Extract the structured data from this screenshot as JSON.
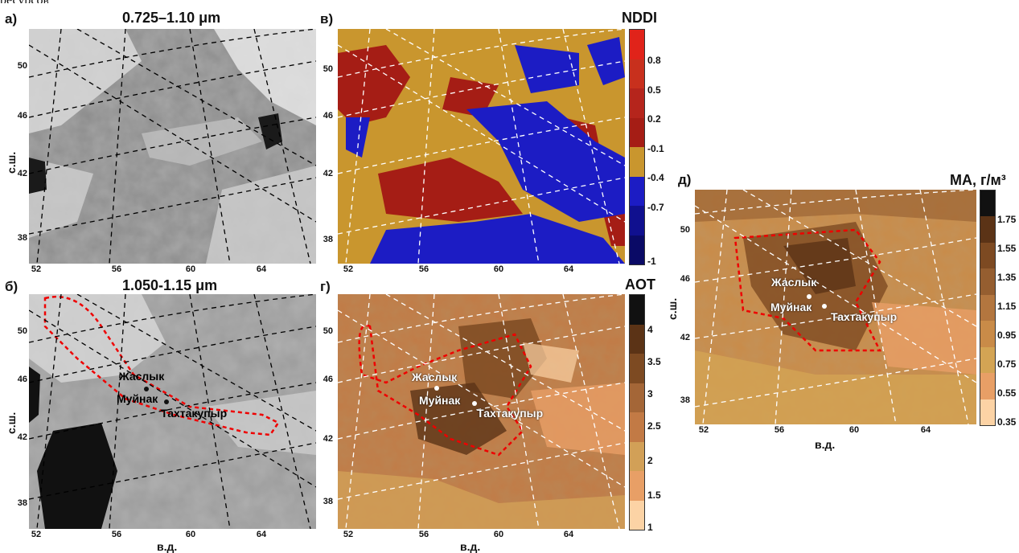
{
  "panels": {
    "a": {
      "letter": "а)",
      "title": "0.725–1.10 μm"
    },
    "b": {
      "letter": "б)",
      "title": "1.050-1.15 μm"
    },
    "v": {
      "letter": "в)",
      "cbar_title": "NDDI",
      "cbar_ticks": [
        "0.8",
        "0.5",
        "0.2",
        "-0.1",
        "-0.4",
        "-0.7",
        "-1"
      ]
    },
    "g": {
      "letter": "г)",
      "cbar_title": "AOT",
      "cbar_ticks": [
        "4",
        "3.5",
        "3",
        "2.5",
        "2",
        "1.5",
        "1"
      ]
    },
    "d": {
      "letter": "д)",
      "cbar_title": "MA, г/м³",
      "cbar_ticks": [
        "1.75",
        "1.55",
        "1.35",
        "1.15",
        "0.95",
        "0.75",
        "0.55",
        "0.35"
      ]
    }
  },
  "axes": {
    "lat_ticks": [
      "50",
      "46",
      "42",
      "38"
    ],
    "lon_ticks": [
      "52",
      "56",
      "60",
      "64"
    ],
    "ylabel": "с.ш.",
    "xlabel": "в.д."
  },
  "cities": {
    "zhaslyk": "Жаслык",
    "muynak": "Муйнак",
    "takhtakupyr": "Тахтакупыр"
  },
  "colors": {
    "nddi": [
      "#e0231a",
      "#c8301d",
      "#b5251c",
      "#a51d15",
      "#c9962e",
      "#1c1cc4",
      "#10108f",
      "#0a0a66"
    ],
    "aot": [
      "#111111",
      "#5b3316",
      "#7d4a22",
      "#a46637",
      "#c27a45",
      "#d2a057",
      "#e89f66",
      "#fcd3a5"
    ],
    "ma": [
      "#111111",
      "#5b3316",
      "#7d4a22",
      "#955e30",
      "#b3763f",
      "#c98b48",
      "#d3a454",
      "#e89f66",
      "#fcd3a5"
    ]
  }
}
